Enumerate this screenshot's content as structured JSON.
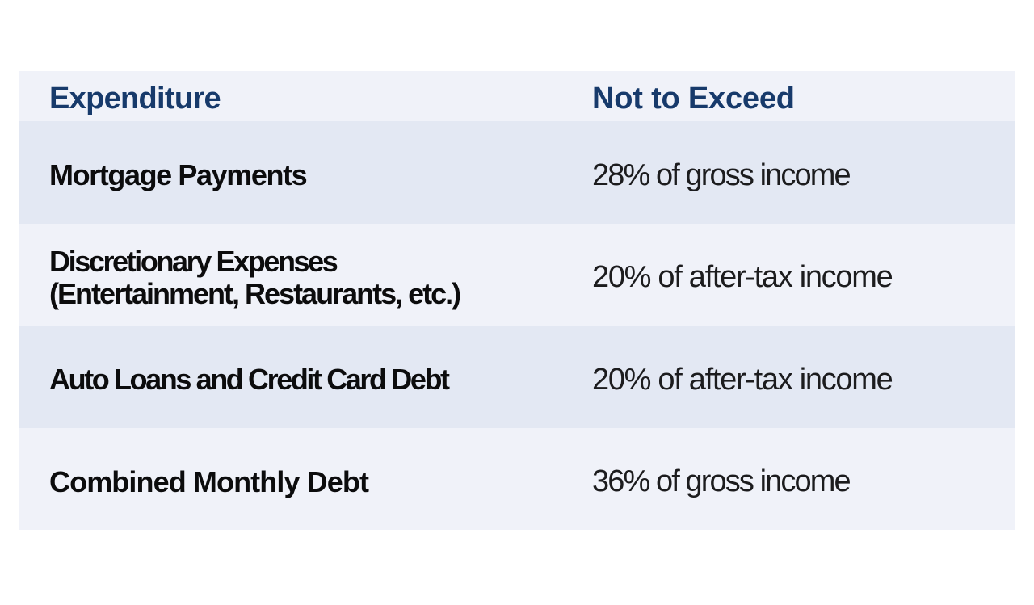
{
  "page": {
    "background_color": "#ffffff"
  },
  "table": {
    "header": {
      "expenditure_label": "Expenditure",
      "limit_label": "Not to Exceed"
    },
    "rows": [
      {
        "lines": [
          "Mortgage Payments"
        ],
        "limit": "28% of gross income"
      },
      {
        "lines": [
          "Discretionary Expenses",
          "(Entertainment, Restaurants, etc.)"
        ],
        "limit": "20% of after-tax income"
      },
      {
        "lines": [
          "Auto Loans and Credit Card Debt"
        ],
        "limit": "20% of after-tax income"
      },
      {
        "lines": [
          "Combined Monthly Debt"
        ],
        "limit": "36% of gross income"
      }
    ],
    "colors": {
      "header_text": "#173a6b",
      "row_dark": "#e3e8f3",
      "row_light": "#f0f2f9",
      "body_text": "#0c0c0d"
    }
  },
  "chart_data": {
    "type": "table",
    "columns": [
      "Expenditure",
      "Not to Exceed"
    ],
    "rows": [
      [
        "Mortgage Payments",
        "28% of gross income"
      ],
      [
        "Discretionary Expenses (Entertainment, Restaurants, etc.)",
        "20% of after-tax income"
      ],
      [
        "Auto Loans and Credit Card Debt",
        "20% of after-tax income"
      ],
      [
        "Combined Monthly Debt",
        "36% of gross income"
      ]
    ]
  }
}
